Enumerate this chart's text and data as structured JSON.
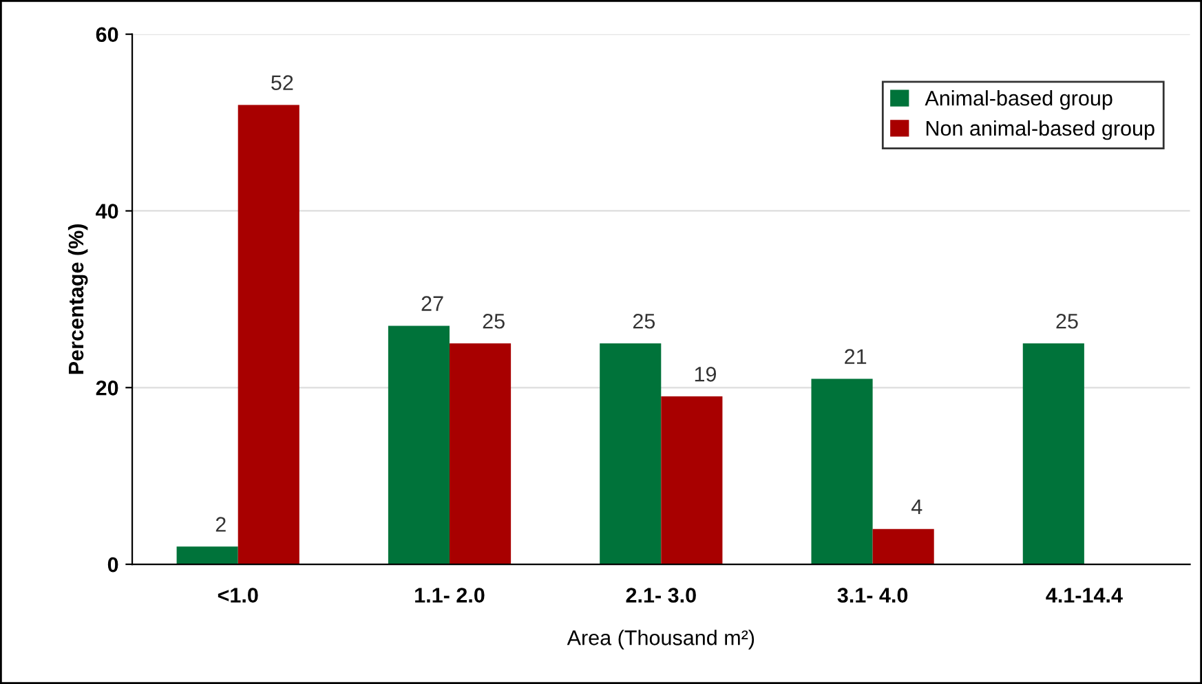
{
  "chart_data": {
    "type": "bar",
    "xlabel": "Area (Thousand m²)",
    "ylabel": "Percentage (%)",
    "categories": [
      "<1.0",
      "1.1- 2.0",
      "2.1- 3.0",
      "3.1- 4.0",
      "4.1-14.4"
    ],
    "series": [
      {
        "name": "Animal-based group",
        "color": "#00733a",
        "values": [
          2,
          27,
          25,
          21,
          25
        ]
      },
      {
        "name": "Non animal-based group",
        "color": "#a80000",
        "values": [
          52,
          25,
          19,
          4,
          null
        ]
      }
    ],
    "ylim": [
      0,
      60
    ],
    "yticks": [
      0,
      20,
      40,
      60
    ],
    "grid": "y",
    "legend": "top right",
    "data_labels": true
  }
}
